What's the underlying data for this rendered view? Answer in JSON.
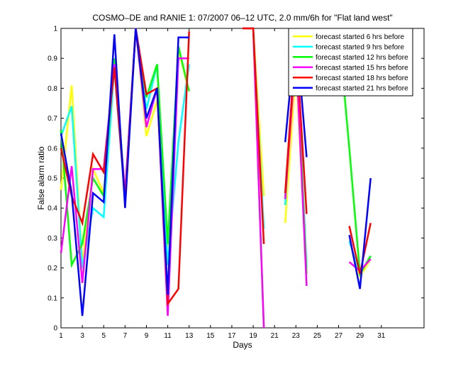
{
  "chart_data": {
    "type": "line",
    "title": "COSMO–DE and RANIE 1: 07/2007 06–12 UTC, 2.0 mm/6h for \"Flat land west\"",
    "xlabel": "Days",
    "ylabel": "False alarm ratio",
    "xlim": [
      1,
      35
    ],
    "ylim": [
      0,
      1
    ],
    "xticks": [
      1,
      3,
      5,
      7,
      9,
      11,
      13,
      15,
      17,
      19,
      21,
      23,
      25,
      27,
      29,
      31
    ],
    "yticks": [
      0,
      0.1,
      0.2,
      0.3,
      0.4,
      0.5,
      0.6,
      0.7,
      0.8,
      0.9,
      1
    ],
    "legend_position": "top-right",
    "grid": false,
    "series": [
      {
        "name": "forecast started 6 hrs before",
        "color": "#ffff00",
        "x": [
          1,
          2,
          3,
          4,
          5,
          6,
          7,
          8,
          9,
          10,
          11,
          12,
          13,
          null,
          18,
          19,
          20,
          null,
          22,
          23,
          24,
          null,
          28,
          29,
          30
        ],
        "y": [
          0.46,
          0.81,
          0.21,
          0.53,
          0.45,
          0.87,
          0.42,
          1.0,
          0.64,
          0.76,
          0.27,
          0.93,
          0.79,
          null,
          1.0,
          1.0,
          0.44,
          null,
          0.35,
          0.87,
          0.18,
          null,
          0.29,
          0.17,
          0.23
        ]
      },
      {
        "name": "forecast started 9 hrs before",
        "color": "#00ffff",
        "x": [
          1,
          2,
          3,
          4,
          5,
          6,
          7,
          8,
          9,
          10,
          11,
          12,
          13,
          null,
          18,
          19,
          20,
          null,
          22,
          23,
          24,
          null,
          28,
          29,
          30
        ],
        "y": [
          0.64,
          0.74,
          0.2,
          0.4,
          0.37,
          0.87,
          0.42,
          1.0,
          0.73,
          0.88,
          0.21,
          0.62,
          0.88,
          null,
          1.0,
          1.0,
          0.33,
          null,
          0.41,
          0.98,
          0.2,
          null,
          0.29,
          0.18,
          0.24
        ]
      },
      {
        "name": "forecast started 12 hrs before",
        "color": "#00ff00",
        "x": [
          1,
          2,
          3,
          4,
          5,
          6,
          7,
          8,
          9,
          10,
          11,
          12,
          13,
          null,
          18,
          19,
          20,
          null,
          22,
          23,
          24,
          null,
          27,
          28,
          29,
          30
        ],
        "y": [
          0.66,
          0.21,
          0.28,
          0.5,
          0.44,
          0.9,
          0.45,
          1.0,
          0.77,
          0.88,
          0.28,
          0.94,
          0.79,
          null,
          1.0,
          1.0,
          0.0,
          null,
          0.44,
          0.97,
          0.18,
          null,
          1.0,
          0.6,
          0.18,
          0.24
        ]
      },
      {
        "name": "forecast started 15 hrs before",
        "color": "#ff00ff",
        "x": [
          1,
          2,
          3,
          4,
          5,
          6,
          7,
          8,
          9,
          10,
          11,
          12,
          13,
          null,
          18,
          19,
          20,
          null,
          22,
          23,
          24,
          null,
          28,
          29,
          30
        ],
        "y": [
          0.25,
          0.54,
          0.15,
          0.53,
          0.53,
          0.88,
          0.45,
          1.0,
          0.67,
          0.8,
          0.04,
          0.9,
          0.9,
          null,
          1.0,
          1.0,
          0.0,
          null,
          0.43,
          0.93,
          0.14,
          null,
          0.22,
          0.19,
          0.23
        ]
      },
      {
        "name": "forecast started 18 hrs before",
        "color": "#ff0000",
        "x": [
          1,
          2,
          3,
          4,
          5,
          6,
          7,
          8,
          9,
          10,
          11,
          12,
          13,
          null,
          18,
          19,
          20,
          null,
          22,
          23,
          24,
          null,
          28,
          29,
          30
        ],
        "y": [
          0.6,
          0.44,
          0.35,
          0.58,
          0.52,
          0.87,
          0.43,
          1.0,
          0.78,
          0.8,
          0.08,
          0.13,
          0.99,
          null,
          1.0,
          1.0,
          0.28,
          null,
          0.45,
          0.97,
          0.38,
          null,
          0.34,
          0.18,
          0.35
        ]
      },
      {
        "name": "forecast started 21 hrs before",
        "color": "#0000ff",
        "x": [
          1,
          2,
          3,
          4,
          5,
          6,
          7,
          8,
          9,
          10,
          11,
          12,
          13,
          null,
          22,
          23,
          24,
          null,
          28,
          29,
          30
        ],
        "y": [
          0.65,
          0.45,
          0.04,
          0.45,
          0.42,
          0.98,
          0.4,
          1.0,
          0.7,
          0.8,
          0.11,
          0.97,
          0.97,
          null,
          0.62,
          1.0,
          0.57,
          null,
          0.31,
          0.13,
          0.5
        ]
      }
    ]
  }
}
